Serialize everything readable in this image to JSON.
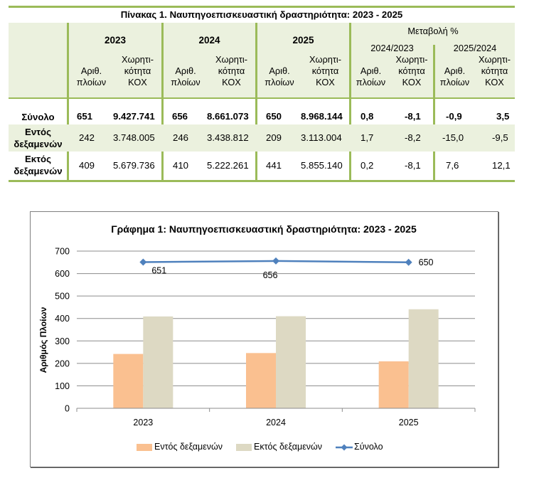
{
  "table": {
    "title": "Πίνακας 1. Ναυπηγοεπισκευαστική δραστηριότητα: 2023 - 2025",
    "years": [
      "2023",
      "2024",
      "2025"
    ],
    "change_header": "Μεταβολή %",
    "change_periods": [
      "2024/2023",
      "2025/2024"
    ],
    "sub_headers": {
      "ships": "Αριθ.\nπλοίων",
      "capacity": "Χωρητι-\nκότητα\nΚΟΧ"
    },
    "rows": [
      {
        "label": "Σύνολο",
        "values": [
          "651",
          "9.427.741",
          "656",
          "8.661.073",
          "650",
          "8.968.144",
          "0,8",
          "-8,1",
          "-0,9",
          "3,5"
        ]
      },
      {
        "label": "Εντός δεξαμενών",
        "values": [
          "242",
          "3.748.005",
          "246",
          "3.438.812",
          "209",
          "3.113.004",
          "1,7",
          "-8,2",
          "-15,0",
          "-9,5"
        ]
      },
      {
        "label": "Εκτός δεξαμενών",
        "values": [
          "409",
          "5.679.736",
          "410",
          "5.222.261",
          "441",
          "5.855.140",
          "0,2",
          "-8,1",
          "7,6",
          "12,1"
        ]
      }
    ],
    "colors": {
      "accent": "#9bbb59",
      "header_bg": "#ebf1de"
    }
  },
  "chart_data": {
    "type": "bar",
    "title": "Γράφημα 1: Ναυπηγοεπισκευαστική δραστηριότητα: 2023 - 2025",
    "xlabel": "",
    "ylabel": "Αριθμός Πλοίων",
    "categories": [
      "2023",
      "2024",
      "2025"
    ],
    "ylim": [
      0,
      700
    ],
    "yticks": [
      0,
      100,
      200,
      300,
      400,
      500,
      600,
      700
    ],
    "grid": true,
    "legend_position": "bottom",
    "series": [
      {
        "name": "Εντός δεξαμενών",
        "kind": "bar",
        "color": "#fac090",
        "values": [
          242,
          246,
          209
        ]
      },
      {
        "name": "Εκτός δεξαμενών",
        "kind": "bar",
        "color": "#ddd9c3",
        "values": [
          409,
          410,
          441
        ]
      },
      {
        "name": "Σύνολο",
        "kind": "line",
        "marker": "diamond",
        "color": "#4f81bd",
        "values": [
          651,
          656,
          650
        ],
        "data_labels": [
          "651",
          "656",
          "650"
        ]
      }
    ]
  }
}
